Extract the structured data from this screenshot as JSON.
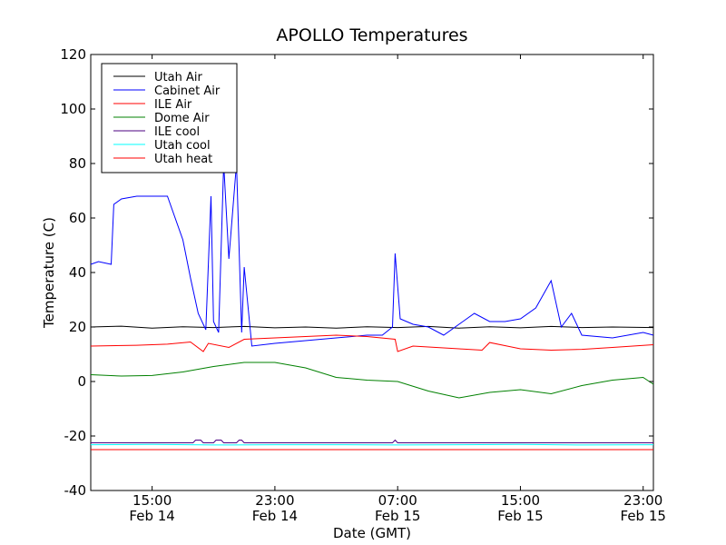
{
  "chart_data": {
    "type": "line",
    "title": "APOLLO Temperatures",
    "xlabel": "Date (GMT)",
    "ylabel": "Temperature (C)",
    "xlim": [
      "2009-02-14 11:00",
      "2009-02-15 23:40"
    ],
    "ylim": [
      -40,
      120
    ],
    "y_ticks": [
      -40,
      -20,
      0,
      20,
      40,
      60,
      80,
      100,
      120
    ],
    "x_ticks": [
      {
        "x": "2009-02-14 15:00",
        "label_time": "15:00",
        "label_date": "Feb 14"
      },
      {
        "x": "2009-02-14 23:00",
        "label_time": "23:00",
        "label_date": "Feb 14"
      },
      {
        "x": "2009-02-15 07:00",
        "label_time": "07:00",
        "label_date": "Feb 15"
      },
      {
        "x": "2009-02-15 15:00",
        "label_time": "15:00",
        "label_date": "Feb 15"
      },
      {
        "x": "2009-02-15 23:00",
        "label_time": "23:00",
        "label_date": "Feb 15"
      }
    ],
    "grid": false,
    "legend_position": "top-left",
    "series": [
      {
        "name": "Utah Air",
        "color": "#000000",
        "x": [
          "2009-02-14 11:00",
          "2009-02-14 13:00",
          "2009-02-14 15:00",
          "2009-02-14 17:00",
          "2009-02-14 19:00",
          "2009-02-14 21:00",
          "2009-02-14 23:00",
          "2009-02-15 01:00",
          "2009-02-15 03:00",
          "2009-02-15 05:00",
          "2009-02-15 07:00",
          "2009-02-15 09:00",
          "2009-02-15 11:00",
          "2009-02-15 13:00",
          "2009-02-15 15:00",
          "2009-02-15 17:00",
          "2009-02-15 19:00",
          "2009-02-15 21:00",
          "2009-02-15 23:40"
        ],
        "y": [
          20,
          20.3,
          19.6,
          20.1,
          19.8,
          20.2,
          19.7,
          20.0,
          19.6,
          20.1,
          19.8,
          20.2,
          19.6,
          20.1,
          19.7,
          20.2,
          19.8,
          20.0,
          19.8
        ]
      },
      {
        "name": "Cabinet Air",
        "color": "#0000ff",
        "x": [
          "2009-02-14 11:00",
          "2009-02-14 11:30",
          "2009-02-14 12:20",
          "2009-02-14 12:30",
          "2009-02-14 13:00",
          "2009-02-14 14:00",
          "2009-02-14 15:00",
          "2009-02-14 16:00",
          "2009-02-14 17:00",
          "2009-02-14 17:30",
          "2009-02-14 18:00",
          "2009-02-14 18:30",
          "2009-02-14 18:50",
          "2009-02-14 19:00",
          "2009-02-14 19:20",
          "2009-02-14 19:40",
          "2009-02-14 20:00",
          "2009-02-14 20:30",
          "2009-02-14 20:50",
          "2009-02-14 21:00",
          "2009-02-14 21:30",
          "2009-02-14 23:00",
          "2009-02-15 01:00",
          "2009-02-15 03:00",
          "2009-02-15 05:00",
          "2009-02-15 06:00",
          "2009-02-15 06:40",
          "2009-02-15 06:50",
          "2009-02-15 07:10",
          "2009-02-15 08:00",
          "2009-02-15 09:00",
          "2009-02-15 10:00",
          "2009-02-15 11:00",
          "2009-02-15 12:00",
          "2009-02-15 13:00",
          "2009-02-15 14:00",
          "2009-02-15 15:00",
          "2009-02-15 16:00",
          "2009-02-15 17:00",
          "2009-02-15 17:40",
          "2009-02-15 18:20",
          "2009-02-15 19:00",
          "2009-02-15 21:00",
          "2009-02-15 23:00",
          "2009-02-15 23:40"
        ],
        "y": [
          43,
          44,
          43,
          65,
          67,
          68,
          68,
          68,
          52,
          38,
          25,
          19,
          68,
          22,
          18,
          80,
          45,
          80,
          18,
          42,
          13,
          14,
          15,
          16,
          17,
          17,
          20,
          47,
          23,
          21,
          20,
          17,
          21,
          25,
          22,
          22,
          23,
          27,
          37,
          20,
          25,
          17,
          16,
          18,
          17
        ]
      },
      {
        "name": "ILE Air",
        "color": "#ff0000",
        "x": [
          "2009-02-14 11:00",
          "2009-02-14 14:00",
          "2009-02-14 16:00",
          "2009-02-14 17:30",
          "2009-02-14 18:20",
          "2009-02-14 18:40",
          "2009-02-14 20:00",
          "2009-02-14 21:00",
          "2009-02-14 23:00",
          "2009-02-15 01:00",
          "2009-02-15 03:00",
          "2009-02-15 05:00",
          "2009-02-15 06:50",
          "2009-02-15 07:00",
          "2009-02-15 08:00",
          "2009-02-15 11:00",
          "2009-02-15 12:30",
          "2009-02-15 13:00",
          "2009-02-15 15:00",
          "2009-02-15 17:00",
          "2009-02-15 19:00",
          "2009-02-15 21:00",
          "2009-02-15 23:40"
        ],
        "y": [
          13,
          13.3,
          13.7,
          14.5,
          11,
          14,
          12.5,
          15.5,
          16,
          16.5,
          17,
          16.5,
          15.5,
          11,
          13,
          12,
          11.5,
          14.3,
          12,
          11.5,
          11.8,
          12.5,
          13.5
        ]
      },
      {
        "name": "Dome Air",
        "color": "#008000",
        "x": [
          "2009-02-14 11:00",
          "2009-02-14 13:00",
          "2009-02-14 15:00",
          "2009-02-14 17:00",
          "2009-02-14 19:00",
          "2009-02-14 21:00",
          "2009-02-14 23:00",
          "2009-02-15 01:00",
          "2009-02-15 03:00",
          "2009-02-15 05:00",
          "2009-02-15 07:00",
          "2009-02-15 09:00",
          "2009-02-15 11:00",
          "2009-02-15 13:00",
          "2009-02-15 15:00",
          "2009-02-15 17:00",
          "2009-02-15 19:00",
          "2009-02-15 21:00",
          "2009-02-15 23:00",
          "2009-02-15 23:40"
        ],
        "y": [
          2.5,
          2,
          2.2,
          3.5,
          5.5,
          7,
          7,
          5,
          1.5,
          0.5,
          0,
          -3.5,
          -6,
          -4,
          -3,
          -4.5,
          -1.5,
          0.5,
          1.5,
          -1
        ]
      },
      {
        "name": "ILE cool",
        "color": "#4b0082",
        "x": [
          "2009-02-14 11:00",
          "2009-02-14 17:40",
          "2009-02-14 17:50",
          "2009-02-14 18:10",
          "2009-02-14 18:20",
          "2009-02-14 19:00",
          "2009-02-14 19:10",
          "2009-02-14 19:30",
          "2009-02-14 19:40",
          "2009-02-14 20:30",
          "2009-02-14 20:40",
          "2009-02-14 20:50",
          "2009-02-14 21:00",
          "2009-02-15 06:40",
          "2009-02-15 06:50",
          "2009-02-15 07:00",
          "2009-02-15 23:40"
        ],
        "y": [
          -22.5,
          -22.5,
          -21.5,
          -21.5,
          -22.5,
          -22.5,
          -21.5,
          -21.5,
          -22.5,
          -22.5,
          -21.5,
          -21.5,
          -22.5,
          -22.5,
          -21.5,
          -22.5,
          -22.5
        ]
      },
      {
        "name": "Utah cool",
        "color": "#00ffff",
        "x": [
          "2009-02-14 11:00",
          "2009-02-14 15:00",
          "2009-02-14 19:00",
          "2009-02-14 23:00",
          "2009-02-15 03:00",
          "2009-02-15 07:00",
          "2009-02-15 11:00",
          "2009-02-15 15:00",
          "2009-02-15 19:00",
          "2009-02-15 23:40"
        ],
        "y": [
          -23.2,
          -23.1,
          -23.3,
          -23.2,
          -23.2,
          -23.3,
          -23.2,
          -23.1,
          -23.3,
          -23.2
        ]
      },
      {
        "name": "Utah heat",
        "color": "#ff0000",
        "x": [
          "2009-02-14 11:00",
          "2009-02-15 23:40"
        ],
        "y": [
          -25,
          -25
        ]
      }
    ]
  }
}
